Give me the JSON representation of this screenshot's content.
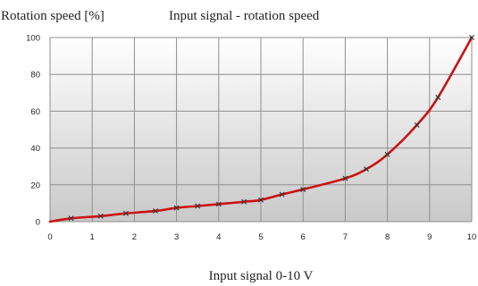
{
  "chart_data": {
    "type": "line",
    "title": "Input signal - rotation speed",
    "ylabel": "Rotation speed [%]",
    "xlabel": "Input signal 0-10 V",
    "xlim": [
      0,
      10
    ],
    "ylim": [
      0,
      100
    ],
    "x_ticks": [
      0,
      1,
      2,
      3,
      4,
      5,
      6,
      7,
      8,
      9,
      10
    ],
    "y_ticks": [
      0,
      20,
      40,
      60,
      80,
      100
    ],
    "x_tick_labels": [
      "0",
      "1",
      "2",
      "3",
      "4",
      "5",
      "6",
      "7",
      "8",
      "9",
      "10"
    ],
    "y_tick_labels": [
      "0",
      "20",
      "40",
      "60",
      "80",
      "100"
    ],
    "grid": true,
    "series": [
      {
        "x": [
          0,
          0.5,
          1.2,
          1.8,
          2.5,
          3.0,
          3.5,
          4.0,
          4.6,
          5.0,
          5.5,
          6.0,
          7.0,
          7.5,
          8.0,
          8.7,
          9.2,
          10.0
        ],
        "y": [
          0,
          1.8,
          3.0,
          4.5,
          5.8,
          7.5,
          8.5,
          9.5,
          10.8,
          11.8,
          14.8,
          17.5,
          23.5,
          28.5,
          36.5,
          52.5,
          67.5,
          100
        ],
        "markers": [
          false,
          true,
          true,
          true,
          true,
          true,
          true,
          true,
          true,
          true,
          true,
          true,
          true,
          true,
          true,
          true,
          true,
          true
        ]
      }
    ],
    "colors": {
      "line": "#cc1111",
      "marker": "#333333",
      "grid": "#8f8f8f",
      "plot_bg_top": "#ffffff",
      "plot_bg_bottom": "#c9c9c9"
    }
  }
}
